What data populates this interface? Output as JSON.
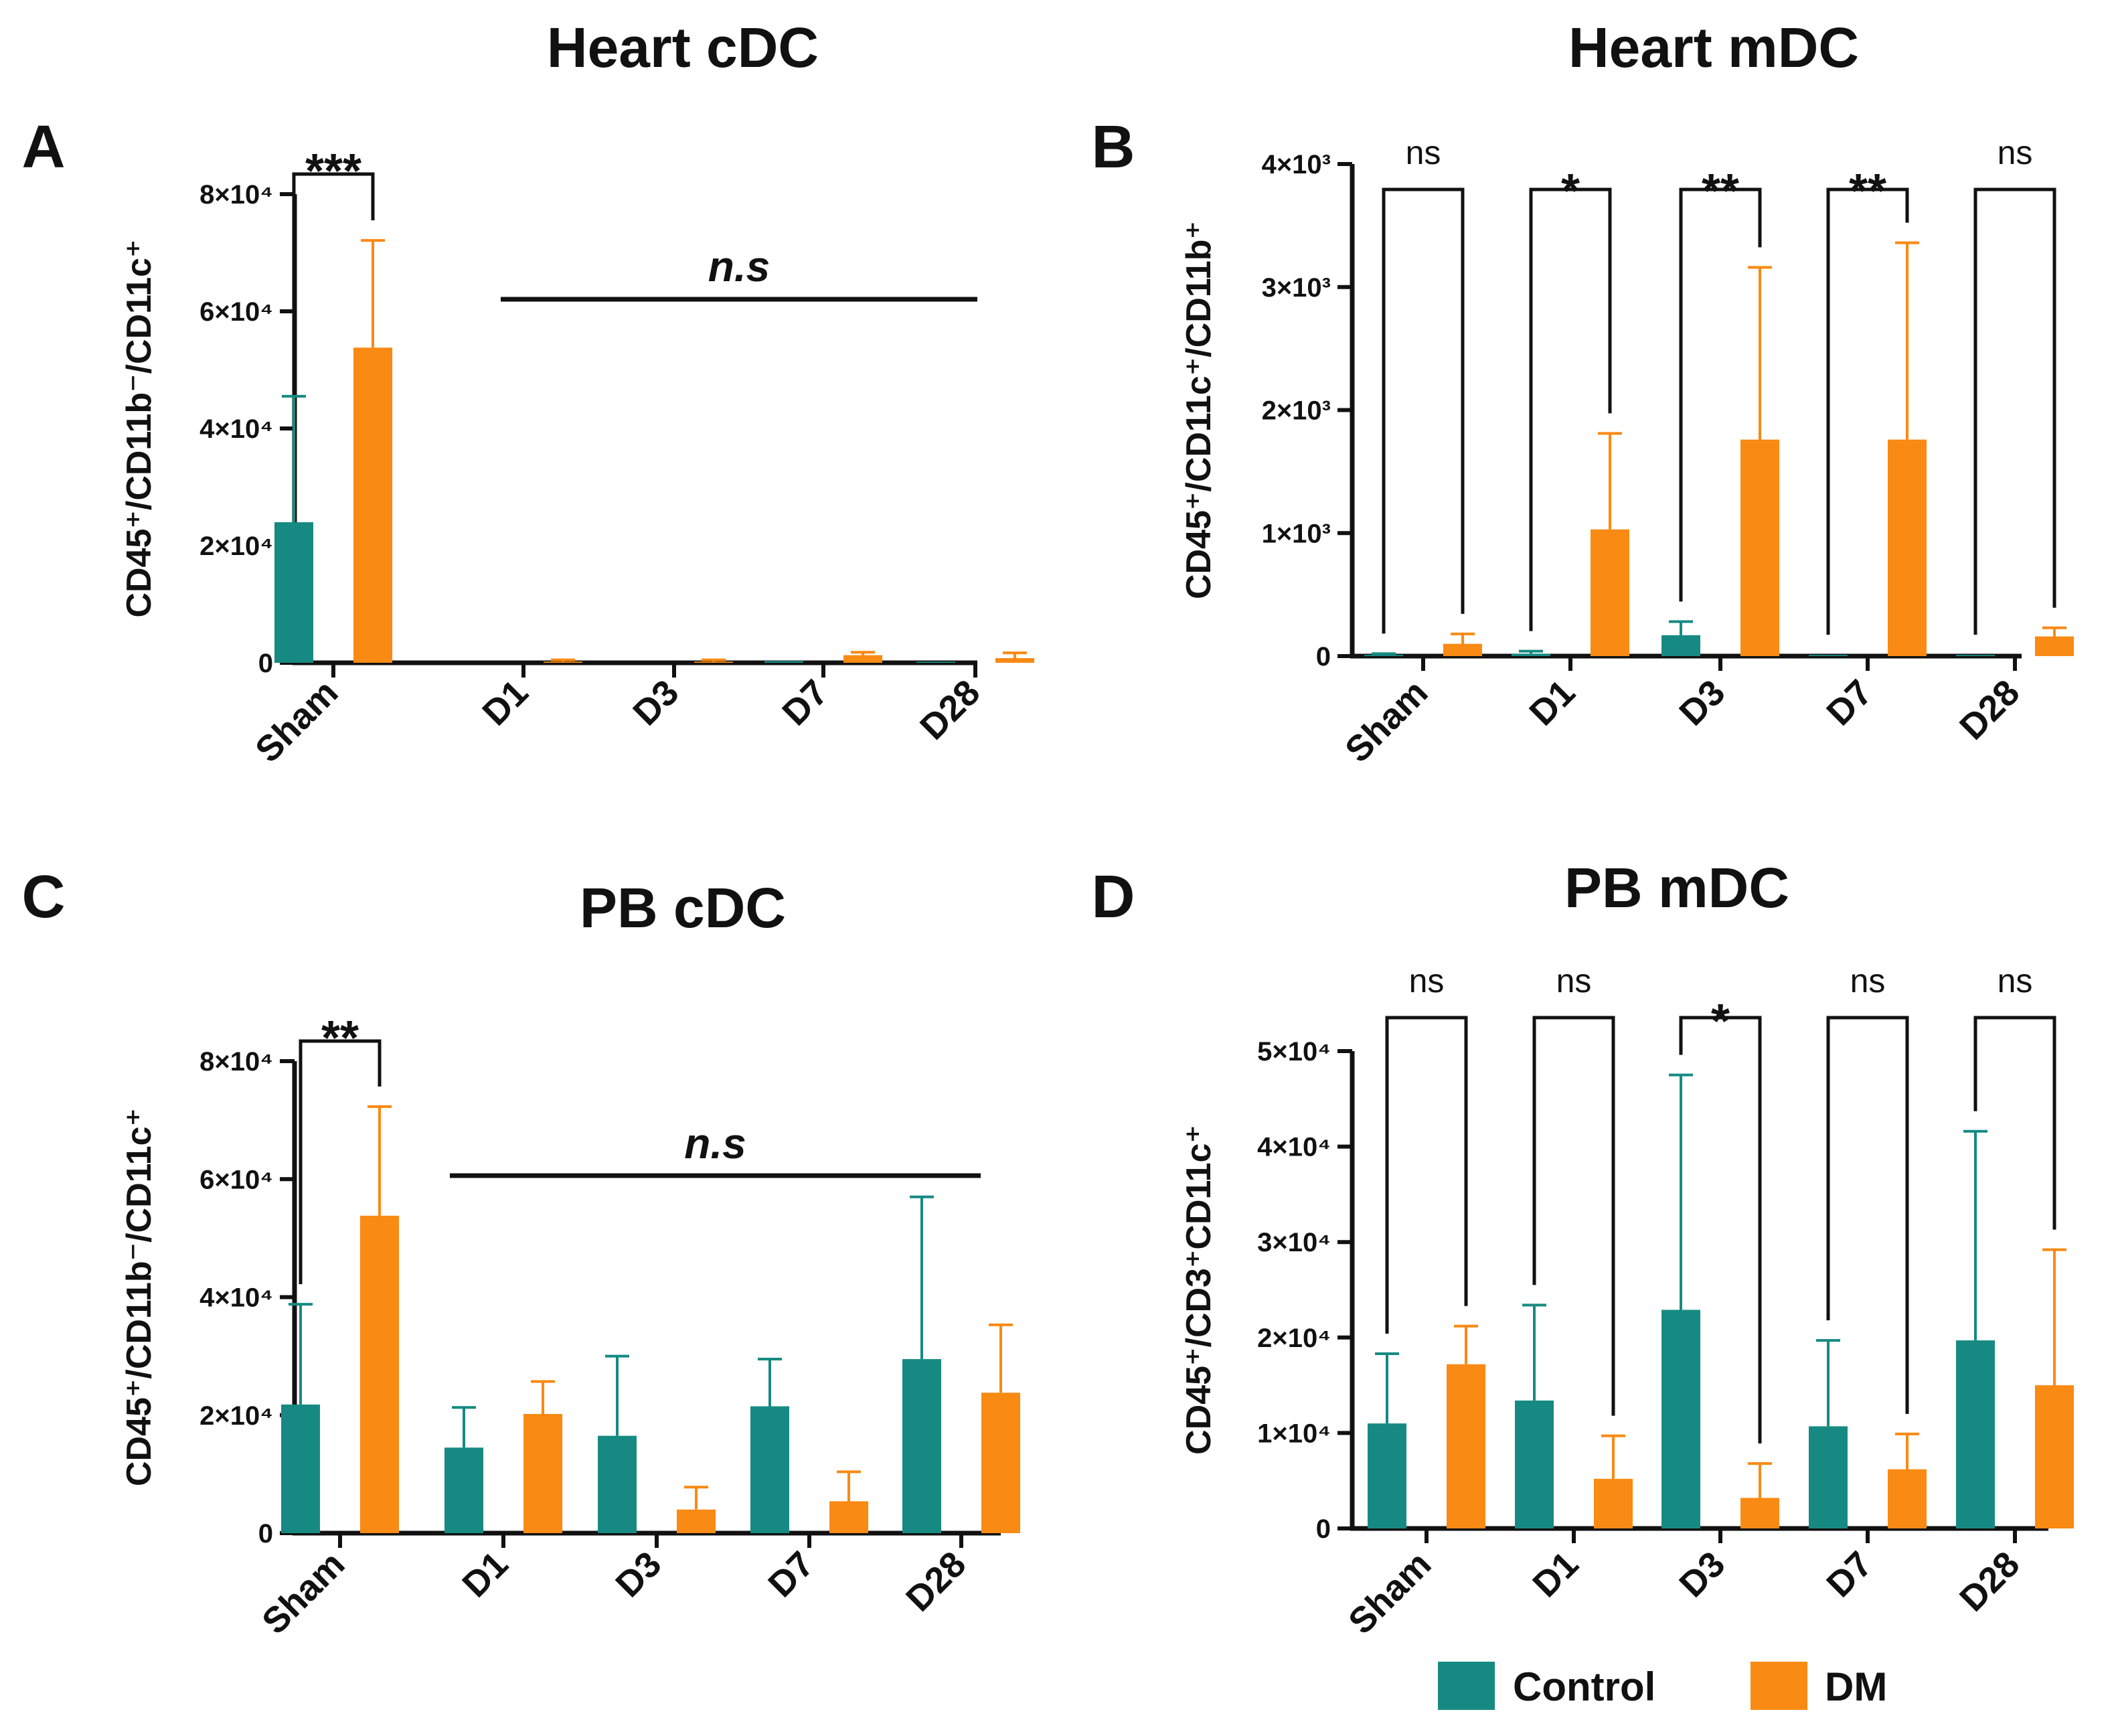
{
  "colors": {
    "control": "#168a82",
    "dm": "#f98a13",
    "axis": "#111111"
  },
  "legend": {
    "control_label": "Control",
    "dm_label": "DM"
  },
  "chart_data": [
    {
      "letter": "A",
      "type": "bar",
      "title": "Heart cDC",
      "ylabel": "CD45⁺/CD11b⁻/CD11c⁺",
      "ylim": [
        0,
        80000
      ],
      "yticks": [
        0,
        20000,
        40000,
        60000,
        80000
      ],
      "ytick_labels": [
        "0",
        "2×10⁴",
        "4×10⁴",
        "6×10⁴",
        "8×10⁴"
      ],
      "categories": [
        "Sham",
        "D1",
        "D3",
        "D7",
        "D28"
      ],
      "series": [
        {
          "name": "Control",
          "values": [
            24000,
            0,
            0,
            300,
            200
          ],
          "errors": [
            21500,
            0,
            0,
            0,
            0
          ]
        },
        {
          "name": "DM",
          "values": [
            53800,
            200,
            200,
            1300,
            800
          ],
          "errors": [
            18300,
            300,
            300,
            500,
            900
          ]
        }
      ],
      "annotations": [
        {
          "kind": "bracket",
          "category": 0,
          "label": "***"
        },
        {
          "kind": "span",
          "from": 1,
          "to": 4,
          "label": "n.s"
        }
      ]
    },
    {
      "letter": "B",
      "type": "bar",
      "title": "Heart mDC",
      "ylabel": "CD45⁺/CD11c⁺/CD11b⁺",
      "ylim": [
        0,
        4000
      ],
      "yticks": [
        0,
        1000,
        2000,
        3000,
        4000
      ],
      "ytick_labels": [
        "0",
        "1×10³",
        "2×10³",
        "3×10³",
        "4×10³"
      ],
      "categories": [
        "Sham",
        "D1",
        "D3",
        "D7",
        "D28"
      ],
      "series": [
        {
          "name": "Control",
          "values": [
            10,
            20,
            170,
            10,
            10
          ],
          "errors": [
            10,
            20,
            110,
            0,
            0
          ]
        },
        {
          "name": "DM",
          "values": [
            100,
            1030,
            1760,
            1760,
            160
          ],
          "errors": [
            80,
            780,
            1400,
            1600,
            70
          ]
        }
      ],
      "annotations": [
        {
          "kind": "bracket",
          "category": 0,
          "label": "ns"
        },
        {
          "kind": "bracket",
          "category": 1,
          "label": "*"
        },
        {
          "kind": "bracket",
          "category": 2,
          "label": "**"
        },
        {
          "kind": "bracket",
          "category": 3,
          "label": "**"
        },
        {
          "kind": "bracket",
          "category": 4,
          "label": "ns"
        }
      ]
    },
    {
      "letter": "C",
      "type": "bar",
      "title": "PB cDC",
      "ylabel": "CD45⁺/CD11b⁻/CD11c⁺",
      "ylim": [
        0,
        80000
      ],
      "yticks": [
        0,
        20000,
        40000,
        60000,
        80000
      ],
      "ytick_labels": [
        "0",
        "2×10⁴",
        "4×10⁴",
        "6×10⁴",
        "8×10⁴"
      ],
      "categories": [
        "Sham",
        "D1",
        "D3",
        "D7",
        "D28"
      ],
      "series": [
        {
          "name": "Control",
          "values": [
            21800,
            14500,
            16500,
            21500,
            29500
          ],
          "errors": [
            17000,
            6800,
            13500,
            8000,
            27500
          ]
        },
        {
          "name": "DM",
          "values": [
            53800,
            20200,
            4000,
            5400,
            23800
          ],
          "errors": [
            18500,
            5500,
            3800,
            5000,
            11500
          ]
        }
      ],
      "annotations": [
        {
          "kind": "bracket",
          "category": 0,
          "label": "**"
        },
        {
          "kind": "span",
          "from": 1,
          "to": 4,
          "label": "n.s"
        }
      ]
    },
    {
      "letter": "D",
      "type": "bar",
      "title": "PB mDC",
      "ylabel": "CD45⁺/CD3⁺CD11c⁺",
      "ylim": [
        0,
        50000
      ],
      "yticks": [
        0,
        10000,
        20000,
        30000,
        40000,
        50000
      ],
      "ytick_labels": [
        "0",
        "1×10⁴",
        "2×10⁴",
        "3×10⁴",
        "4×10⁴",
        "5×10⁴"
      ],
      "categories": [
        "Sham",
        "D1",
        "D3",
        "D7",
        "D28"
      ],
      "series": [
        {
          "name": "Control",
          "values": [
            11000,
            13400,
            22900,
            10700,
            19700
          ],
          "errors": [
            7300,
            10000,
            24600,
            9000,
            21900
          ]
        },
        {
          "name": "DM",
          "values": [
            17200,
            5200,
            3200,
            6200,
            15000
          ],
          "errors": [
            4000,
            4500,
            3600,
            3700,
            14200
          ]
        }
      ],
      "annotations": [
        {
          "kind": "bracket",
          "category": 0,
          "label": "ns"
        },
        {
          "kind": "bracket",
          "category": 1,
          "label": "ns"
        },
        {
          "kind": "bracket",
          "category": 2,
          "label": "*"
        },
        {
          "kind": "bracket",
          "category": 3,
          "label": "ns"
        },
        {
          "kind": "bracket",
          "category": 4,
          "label": "ns"
        }
      ]
    }
  ]
}
